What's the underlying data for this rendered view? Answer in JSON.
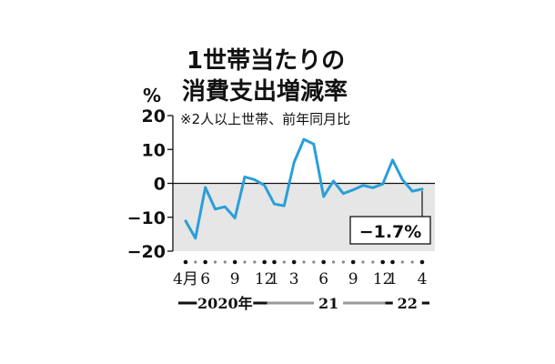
{
  "title_line1": "1世帯当たりの",
  "title_line2": "消費支出増減率",
  "unit": "%",
  "note": "※2人以上世帯、前年同月比",
  "chart_data": {
    "type": "line",
    "title": "1世帯当たりの消費支出増減率",
    "subtitle": "※2人以上世帯、前年同月比",
    "ylabel": "%",
    "ylim": [
      -20,
      20
    ],
    "yticks": [
      20,
      10,
      0,
      -10,
      -20
    ],
    "x_tick_labels": [
      {
        "month_index": 0,
        "label": "4月"
      },
      {
        "month_index": 2,
        "label": "6"
      },
      {
        "month_index": 5,
        "label": "9"
      },
      {
        "month_index": 8,
        "label": "12"
      },
      {
        "month_index": 9,
        "label": "1"
      },
      {
        "month_index": 11,
        "label": "3"
      },
      {
        "month_index": 14,
        "label": "6"
      },
      {
        "month_index": 17,
        "label": "9"
      },
      {
        "month_index": 20,
        "label": "12"
      },
      {
        "month_index": 21,
        "label": "1"
      },
      {
        "month_index": 24,
        "label": "4"
      }
    ],
    "year_labels": [
      {
        "label": "2020年",
        "start": 0,
        "end": 8
      },
      {
        "label": "21",
        "start": 9,
        "end": 20
      },
      {
        "label": "22",
        "start": 21,
        "end": 24
      }
    ],
    "series": [
      {
        "color": "#2a9fd8",
        "x": [
          "2020-04",
          "2020-05",
          "2020-06",
          "2020-07",
          "2020-08",
          "2020-09",
          "2020-10",
          "2020-11",
          "2020-12",
          "2021-01",
          "2021-02",
          "2021-03",
          "2021-04",
          "2021-05",
          "2021-06",
          "2021-07",
          "2021-08",
          "2021-09",
          "2021-10",
          "2021-11",
          "2021-12",
          "2022-01",
          "2022-02",
          "2022-03",
          "2022-04"
        ],
        "values": [
          -11.1,
          -16.2,
          -1.2,
          -7.6,
          -6.9,
          -10.2,
          1.9,
          1.1,
          -0.6,
          -6.1,
          -6.6,
          6.2,
          13.0,
          11.6,
          -3.9,
          0.7,
          -3.0,
          -1.9,
          -0.6,
          -1.3,
          -0.2,
          6.9,
          1.1,
          -2.3,
          -1.7
        ]
      }
    ],
    "annotation": {
      "label": "−1.7%",
      "month_index": 24
    },
    "negative_region_color": "#e6e6e6",
    "grid": false
  }
}
